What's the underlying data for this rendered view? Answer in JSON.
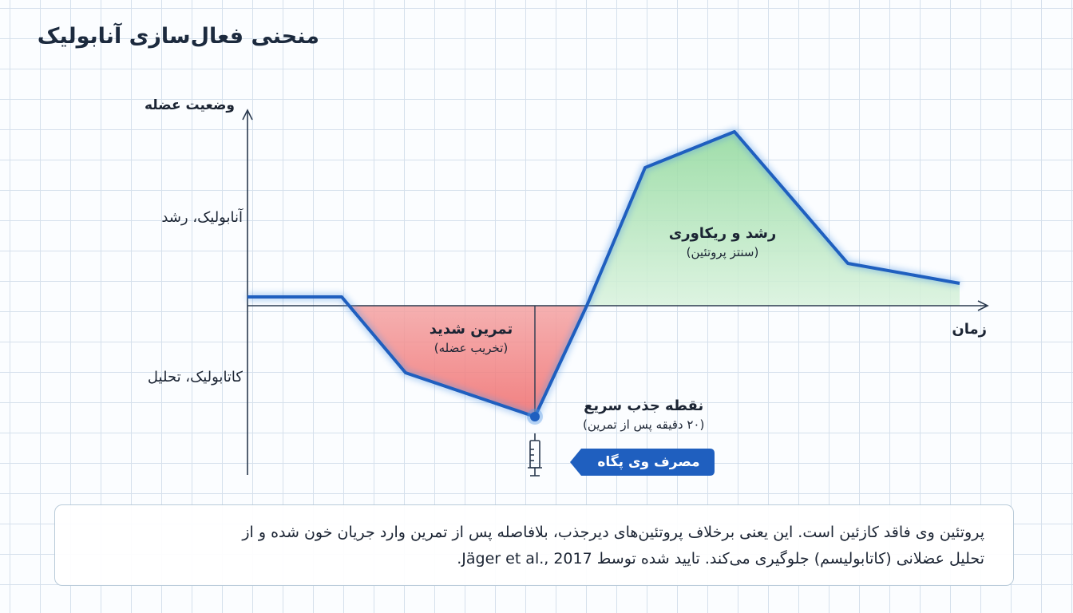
{
  "title": "منحنی فعال‌سازی آنابولیک",
  "axes": {
    "y_label": "وضعیت عضله",
    "x_label": "زمان",
    "upper_zone": "آنابولیک، رشد",
    "lower_zone": "کاتابولیک، تحلیل"
  },
  "regions": [
    {
      "title": "تمرین شدید",
      "subtitle": "(تخریب عضله)"
    },
    {
      "title": "رشد و ریکاوری",
      "subtitle": "(سنتز پروتئین)"
    }
  ],
  "annotation": {
    "title": "نقطه جذب سریع",
    "subtitle": "(۲۰ دقیقه پس از تمرین)",
    "badge": "مصرف وی پگاه"
  },
  "note": {
    "lines": [
      "پروتئین وی فاقد کازئین است. این یعنی برخلاف پروتئین‌های دیرجذب، بلافاصله پس از تمرین وارد جریان خون شده و از",
      "تحلیل عضلانی (کاتابولیسم) جلوگیری می‌کند. تایید شده توسط Jäger et al., 2017."
    ]
  }
}
